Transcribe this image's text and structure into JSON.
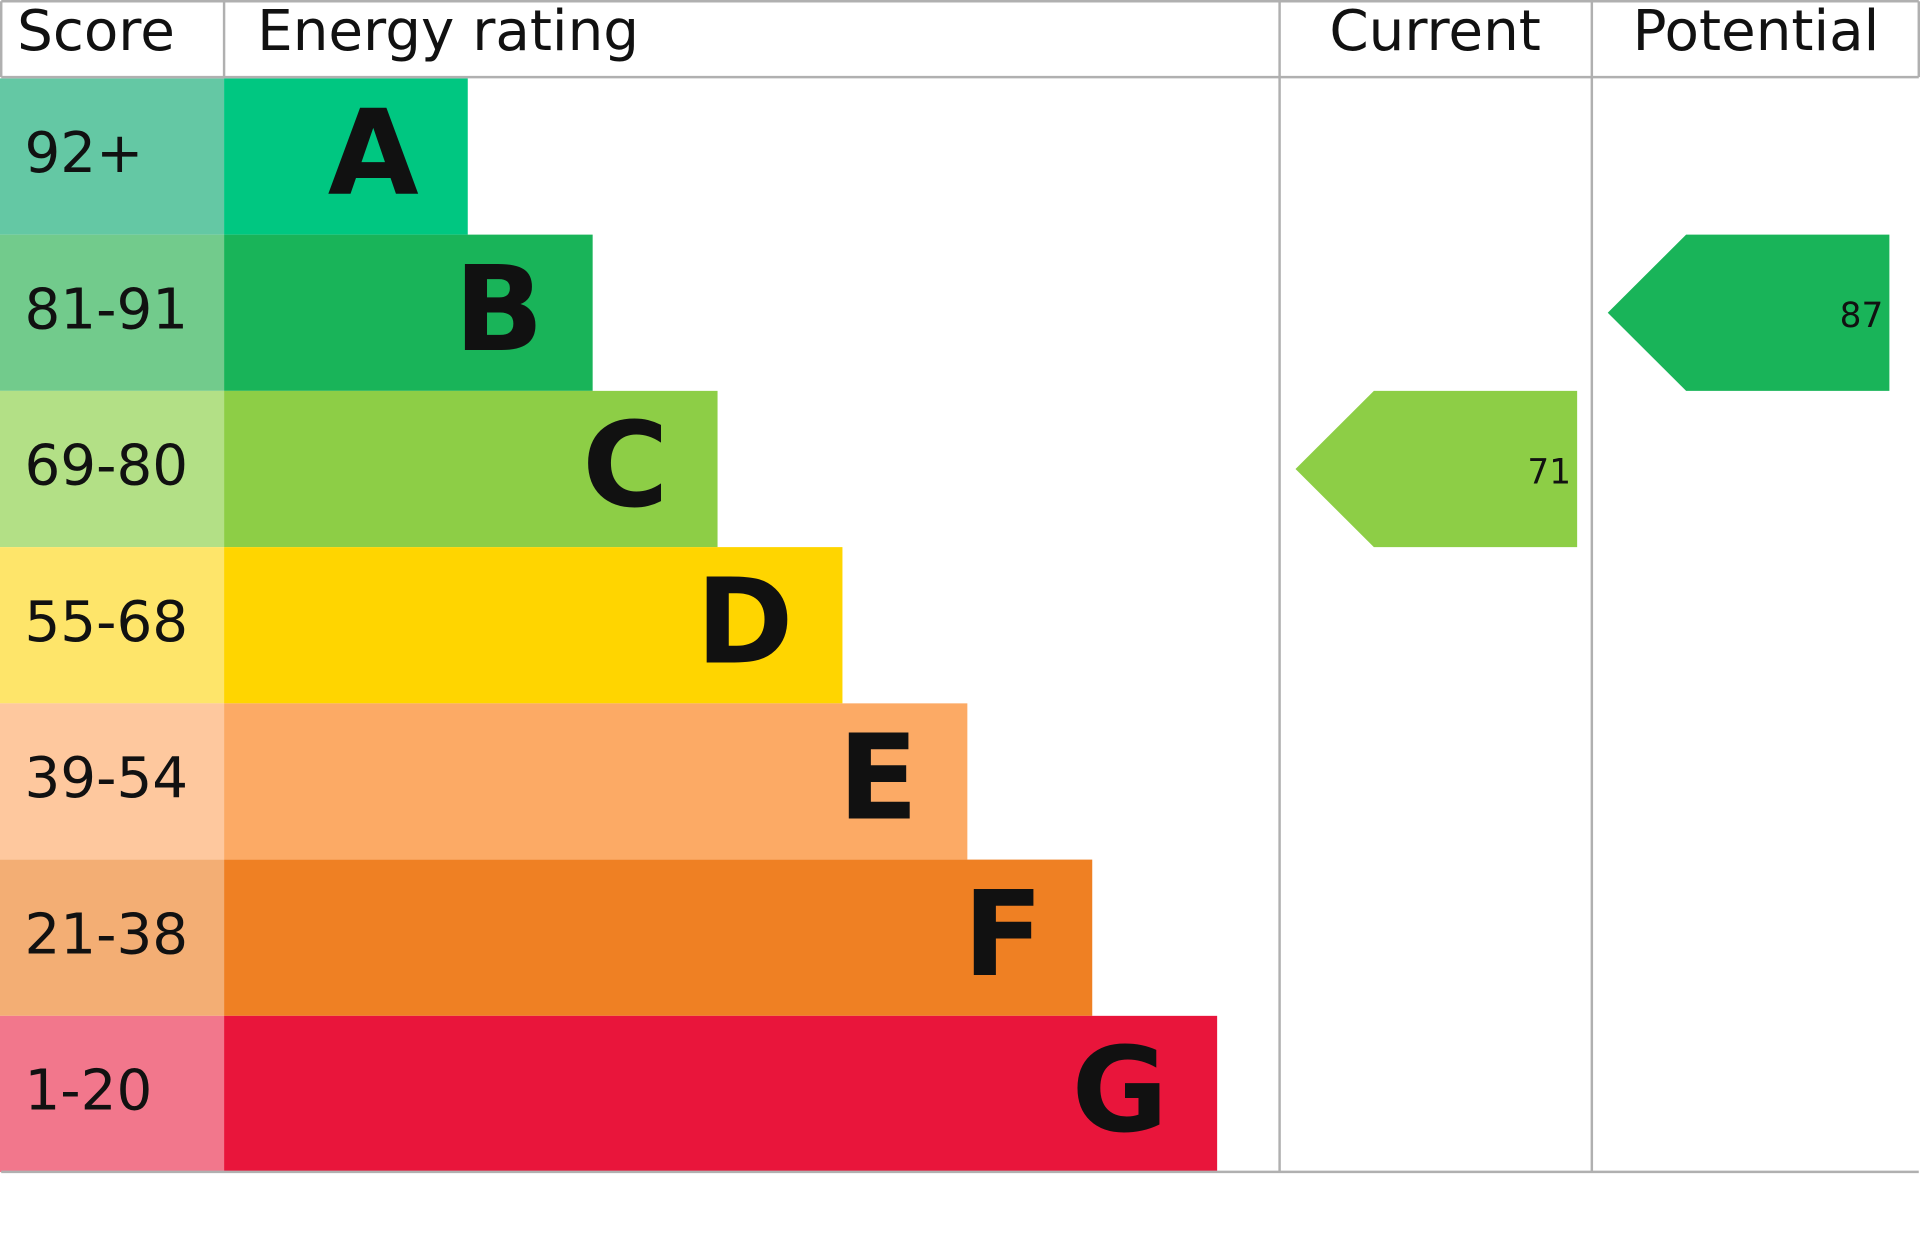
{
  "headers": {
    "score": "Score",
    "rating": "Energy rating",
    "current": "Current",
    "potential": "Potential"
  },
  "bands": [
    {
      "score": "92+",
      "letter": "A",
      "color": "#00c781",
      "score_color": "#64c8a4"
    },
    {
      "score": "81-91",
      "letter": "B",
      "color": "#19b459",
      "score_color": "#72cb8c"
    },
    {
      "score": "69-80",
      "letter": "C",
      "color": "#8dce46",
      "score_color": "#b3e086"
    },
    {
      "score": "55-68",
      "letter": "D",
      "color": "#ffd500",
      "score_color": "#fee56a"
    },
    {
      "score": "39-54",
      "letter": "E",
      "color": "#fcaa65",
      "score_color": "#fec89e"
    },
    {
      "score": "21-38",
      "letter": "F",
      "color": "#ef8023",
      "score_color": "#f3ae74"
    },
    {
      "score": "1-20",
      "letter": "G",
      "color": "#e9153b",
      "score_color": "#f2778c"
    }
  ],
  "current": {
    "value": 71
  },
  "potential": {
    "value": 87
  }
}
